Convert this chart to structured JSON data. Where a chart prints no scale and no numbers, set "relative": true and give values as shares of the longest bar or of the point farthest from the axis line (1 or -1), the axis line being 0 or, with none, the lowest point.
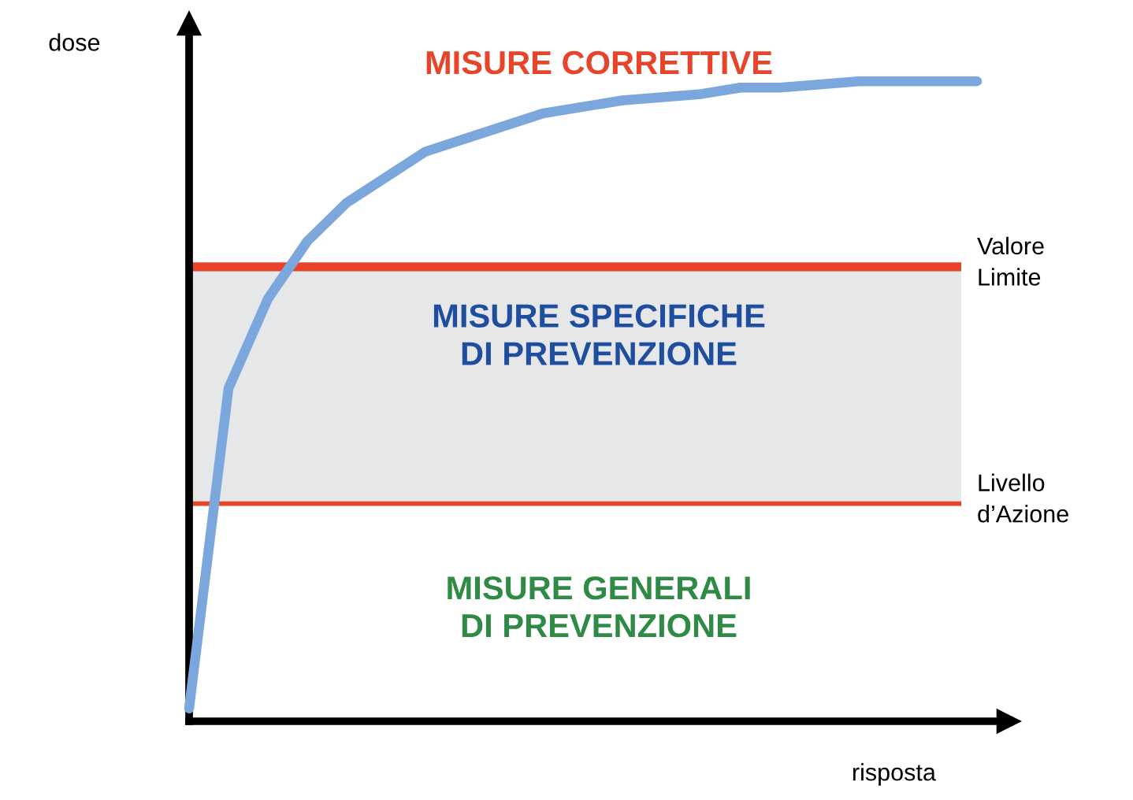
{
  "chart_data": {
    "type": "line",
    "relative": true,
    "xlabel": "risposta",
    "ylabel": "dose",
    "categories": [
      null,
      null,
      null,
      null,
      null,
      null,
      null,
      null,
      null,
      null,
      null,
      null,
      null,
      null,
      null,
      null,
      null,
      null,
      null,
      null,
      null
    ],
    "series": [
      {
        "color": "#7ba7dc",
        "values": [
          0.02,
          0.52,
          0.66,
          0.75,
          0.81,
          0.85,
          0.89,
          0.91,
          0.93,
          0.95,
          0.96,
          0.97,
          0.975,
          0.98,
          0.99,
          0.99,
          0.995,
          1.0,
          1.0,
          1.0,
          1.0
        ]
      }
    ],
    "ref_lines": [
      {
        "axis": "y",
        "value": 0.71,
        "label": "Valore\nLimite",
        "color": "#e8442a"
      },
      {
        "axis": "y",
        "value": 0.34,
        "label": "Livello\nd’Azione",
        "color": "#e8442a"
      }
    ],
    "bands": [
      {
        "axis": "y",
        "from": 0.34,
        "to": 0.71,
        "color": "#e6e7e8"
      }
    ],
    "annotations": [
      "MISURE CORRETTIVE",
      "MISURE SPECIFICHE\nDI PREVENZIONE",
      "MISURE GENERALI\nDI PREVENZIONE"
    ],
    "legend": false,
    "marker": "none",
    "line_style": "solid"
  }
}
